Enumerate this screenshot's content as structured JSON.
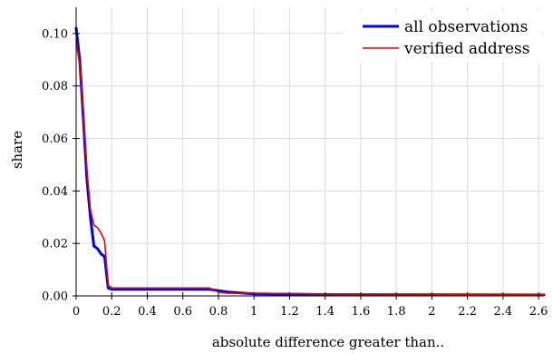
{
  "chart_data": {
    "type": "line",
    "xlabel": "absolute difference greater than..",
    "ylabel": "share",
    "xlim": [
      0,
      2.63
    ],
    "ylim": [
      0,
      0.11
    ],
    "x_ticks": [
      0,
      0.2,
      0.4,
      0.6,
      0.8,
      1,
      1.2,
      1.4,
      1.6,
      1.8,
      2,
      2.2,
      2.4,
      2.6
    ],
    "x_tick_labels": [
      "0",
      "0.2",
      "0.4",
      "0.6",
      "0.8",
      "1",
      "1.2",
      "1.4",
      "1.6",
      "1.8",
      "2",
      "2.2",
      "2.4",
      "2.6"
    ],
    "y_ticks": [
      0,
      0.02,
      0.04,
      0.06,
      0.08,
      0.1
    ],
    "y_tick_labels": [
      "0.00",
      "0.02",
      "0.04",
      "0.06",
      "0.08",
      "0.10"
    ],
    "grid": true,
    "legend_position": "top-right",
    "series": [
      {
        "name": "all observations",
        "color": "#0000e6",
        "values": [
          [
            0.0,
            0.102
          ],
          [
            0.02,
            0.09
          ],
          [
            0.04,
            0.068
          ],
          [
            0.06,
            0.045
          ],
          [
            0.08,
            0.03
          ],
          [
            0.1,
            0.019
          ],
          [
            0.12,
            0.018
          ],
          [
            0.14,
            0.016
          ],
          [
            0.16,
            0.015
          ],
          [
            0.18,
            0.003
          ],
          [
            0.2,
            0.0025
          ],
          [
            0.75,
            0.0025
          ],
          [
            0.8,
            0.002
          ],
          [
            0.85,
            0.0015
          ],
          [
            0.95,
            0.001
          ],
          [
            1.0,
            0.0008
          ],
          [
            1.4,
            0.0005
          ],
          [
            2.63,
            0.0004
          ]
        ]
      },
      {
        "name": "verified address",
        "color": "#e60000",
        "values": [
          [
            0.0,
            0.097
          ],
          [
            0.02,
            0.088
          ],
          [
            0.04,
            0.07
          ],
          [
            0.06,
            0.048
          ],
          [
            0.08,
            0.033
          ],
          [
            0.1,
            0.027
          ],
          [
            0.12,
            0.026
          ],
          [
            0.14,
            0.024
          ],
          [
            0.16,
            0.021
          ],
          [
            0.18,
            0.004
          ],
          [
            0.2,
            0.003
          ],
          [
            0.75,
            0.003
          ],
          [
            0.8,
            0.0015
          ],
          [
            0.85,
            0.001
          ],
          [
            1.0,
            0.001
          ],
          [
            1.4,
            0.0007
          ],
          [
            2.63,
            0.0006
          ]
        ]
      }
    ]
  }
}
